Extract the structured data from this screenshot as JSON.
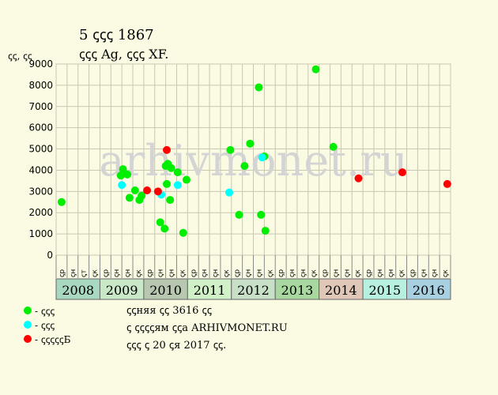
{
  "header": {
    "title": "5 ꞔꞔꞔ 1867",
    "subtitle": "ꞔꞔꞔ Ag, ꞔꞔꞔ XF.",
    "y_unit": "ꞔꞔ, ꞔꞔ"
  },
  "legend": [
    {
      "label": "- ꞔꞔꞔ",
      "color": "#00ee00"
    },
    {
      "label": "- ꞔꞔꞔ",
      "color": "#00ffff"
    },
    {
      "label": "- ꞔꞔꞔꞔꞔБ",
      "color": "#ff0000"
    }
  ],
  "notes": [
    "ꞔꞔняя ꞔꞔ 3616 ꞔꞔ",
    "ꞔ ꞔꞔꞔꞔям ꞔꞔа ARHIVMONET.RU",
    "ꞔꞔꞔ ꞔ 20 ꞔя 2017 ꞔꞔ."
  ],
  "watermark": "arhivmonet.ru",
  "chart_data": {
    "type": "scatter",
    "ylim": [
      0,
      9000
    ],
    "yticks": [
      0,
      1000,
      2000,
      3000,
      4000,
      5000,
      6000,
      7000,
      8000,
      9000
    ],
    "quarters": [
      "ꞔр",
      "ꞔн",
      "ꞔт",
      "ꞔк",
      "ꞔр",
      "ꞔн",
      "ꞔн",
      "ꞔк",
      "ꞔр",
      "ꞔн",
      "ꞔн",
      "ꞔк",
      "ꞔр",
      "ꞔн",
      "ꞔн",
      "ꞔк",
      "ꞔр",
      "ꞔн",
      "ꞔн",
      "ꞔк",
      "ꞔр",
      "ꞔн",
      "ꞔн",
      "ꞔк",
      "ꞔр",
      "ꞔн",
      "ꞔн",
      "ꞔк",
      "ꞔр",
      "ꞔн",
      "ꞔн",
      "ꞔк",
      "ꞔр",
      "ꞔн",
      "ꞔн",
      "ꞔк"
    ],
    "years": [
      {
        "label": "2008",
        "color": "#a8d8c0"
      },
      {
        "label": "2009",
        "color": "#c8e8c8"
      },
      {
        "label": "2010",
        "color": "#b8c8b0"
      },
      {
        "label": "2011",
        "color": "#d0f0c8"
      },
      {
        "label": "2012",
        "color": "#c8e0c8"
      },
      {
        "label": "2013",
        "color": "#a8d8a0"
      },
      {
        "label": "2014",
        "color": "#e0c8b8"
      },
      {
        "label": "2015",
        "color": "#b8f0e0"
      },
      {
        "label": "2016",
        "color": "#a8d0e0"
      }
    ],
    "series": [
      {
        "color": "#00ee00",
        "points": [
          [
            0.5,
            2500
          ],
          [
            5.9,
            3750
          ],
          [
            6.1,
            4050
          ],
          [
            6.5,
            3800
          ],
          [
            6.7,
            2700
          ],
          [
            7.2,
            3050
          ],
          [
            7.6,
            2600
          ],
          [
            7.8,
            2800
          ],
          [
            9.5,
            1550
          ],
          [
            9.9,
            1250
          ],
          [
            10.0,
            4200
          ],
          [
            10.1,
            3350
          ],
          [
            10.2,
            4300
          ],
          [
            10.4,
            2600
          ],
          [
            10.5,
            4100
          ],
          [
            11.1,
            3900
          ],
          [
            11.6,
            1050
          ],
          [
            11.9,
            3550
          ],
          [
            15.9,
            4950
          ],
          [
            16.7,
            1900
          ],
          [
            17.2,
            4200
          ],
          [
            17.7,
            5250
          ],
          [
            18.5,
            7900
          ],
          [
            18.7,
            1900
          ],
          [
            19.1,
            1150
          ],
          [
            19.0,
            4650
          ],
          [
            23.7,
            8750
          ],
          [
            25.3,
            5100
          ]
        ]
      },
      {
        "color": "#00ffff",
        "points": [
          [
            6.0,
            3300
          ],
          [
            9.6,
            2850
          ],
          [
            11.1,
            3300
          ],
          [
            15.8,
            2950
          ],
          [
            18.8,
            4600
          ]
        ]
      },
      {
        "color": "#ff0000",
        "points": [
          [
            8.3,
            3050
          ],
          [
            9.3,
            3000
          ],
          [
            10.1,
            4950
          ],
          [
            27.6,
            3616
          ],
          [
            31.6,
            3900
          ],
          [
            35.7,
            3350
          ]
        ]
      }
    ]
  }
}
